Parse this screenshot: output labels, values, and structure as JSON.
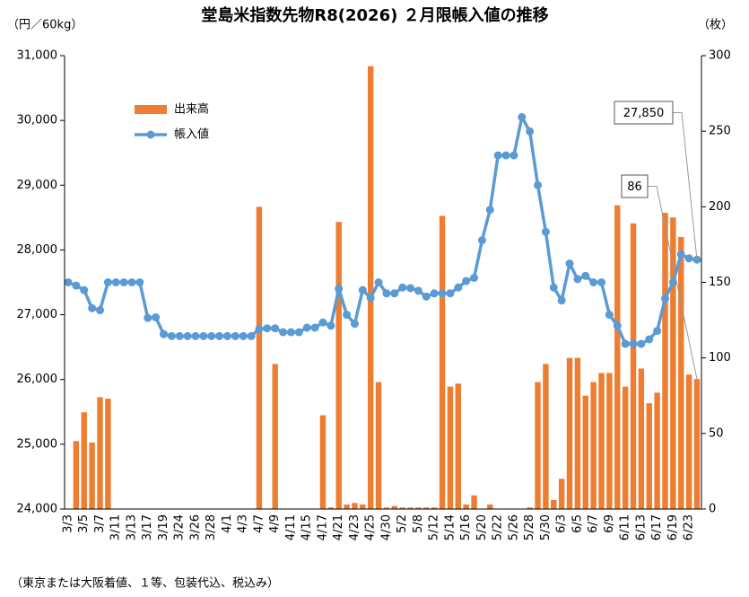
{
  "chart_data": {
    "type": "bar_line",
    "title": "堂島米指数先物R8(2026) ２月限帳入値の推移",
    "y_label": "（円／60kg）",
    "y2_label": "（枚）",
    "footnote": "（東京または大阪着値、１等、包装代込、税込み）",
    "legend": "upper left",
    "categories": [
      "3/3",
      null,
      "3/5",
      null,
      "3/7",
      null,
      "3/11",
      null,
      "3/13",
      null,
      "3/17",
      null,
      "3/19",
      null,
      "3/24",
      null,
      "3/26",
      null,
      "3/28",
      null,
      "4/1",
      null,
      "4/3",
      null,
      "4/7",
      null,
      "4/9",
      null,
      "4/11",
      null,
      "4/15",
      null,
      "4/17",
      null,
      "4/21",
      null,
      "4/23",
      null,
      "4/25",
      null,
      "4/30",
      null,
      "5/2",
      null,
      "5/8",
      null,
      "5/12",
      null,
      "5/14",
      null,
      "5/16",
      null,
      "5/20",
      null,
      "5/22",
      null,
      "5/26",
      null,
      "5/28",
      null,
      "5/30",
      null,
      "6/3",
      null,
      "6/5",
      null,
      "6/7",
      null,
      "6/9",
      null,
      "6/11",
      null,
      "6/13",
      null,
      "6/17",
      null,
      "6/19",
      null,
      "6/23",
      null
    ],
    "series": [
      {
        "name": "出来高",
        "kind": "bar",
        "axis": "y2",
        "color": "#ed7d31",
        "values": [
          0,
          45,
          64,
          44,
          74,
          73,
          0,
          0,
          0,
          0,
          0,
          0,
          0,
          0,
          0,
          0,
          0,
          0,
          0,
          0,
          0,
          0,
          0,
          0,
          200,
          0,
          96,
          0,
          0,
          0,
          0,
          0,
          62,
          1,
          190,
          3,
          4,
          3,
          293,
          84,
          1,
          2,
          1,
          1,
          1,
          1,
          1,
          194,
          81,
          83,
          3,
          9,
          0,
          3,
          0,
          0,
          0,
          0,
          1,
          84,
          96,
          6,
          20,
          100,
          100,
          75,
          84,
          90,
          90,
          201,
          81,
          189,
          93,
          70,
          77,
          196,
          193,
          180,
          89,
          86
        ],
        "value_labels": [
          null,
          null,
          null,
          null,
          null,
          null,
          null,
          null,
          null,
          null,
          null,
          null,
          null,
          null,
          null,
          null,
          null,
          null,
          null,
          null,
          null,
          null,
          null,
          null,
          null,
          null,
          null,
          null,
          null,
          null,
          null,
          null,
          null,
          null,
          null,
          null,
          null,
          null,
          null,
          null,
          null,
          null,
          null,
          null,
          null,
          null,
          null,
          null,
          null,
          null,
          null,
          null,
          null,
          null,
          null,
          null,
          null,
          null,
          null,
          null,
          null,
          null,
          null,
          null,
          null,
          null,
          null,
          null,
          null,
          null,
          null,
          null,
          null,
          null,
          null,
          null,
          null,
          null,
          null,
          "86"
        ]
      },
      {
        "name": "帳入値",
        "kind": "line",
        "color": "#5b9bd5",
        "values": [
          27500,
          27450,
          27380,
          27100,
          27070,
          27500,
          27500,
          27500,
          27500,
          27500,
          26950,
          26960,
          26700,
          26670,
          26670,
          26670,
          26670,
          26670,
          26670,
          26670,
          26670,
          26670,
          26670,
          26670,
          26780,
          26790,
          26790,
          26730,
          26730,
          26730,
          26800,
          26800,
          26880,
          26830,
          27400,
          27000,
          26860,
          27380,
          27260,
          27500,
          27330,
          27330,
          27420,
          27410,
          27370,
          27280,
          27330,
          27330,
          27330,
          27420,
          27520,
          27570,
          28150,
          28620,
          29460,
          29460,
          29460,
          30050,
          29830,
          29000,
          28280,
          27420,
          27220,
          27790,
          27550,
          27600,
          27500,
          27500,
          27000,
          26830,
          26550,
          26550,
          26550,
          26620,
          26750,
          27250,
          27500,
          27930,
          27870,
          27850
        ],
        "value_labels": [
          null,
          null,
          null,
          null,
          null,
          null,
          null,
          null,
          null,
          null,
          null,
          null,
          null,
          null,
          null,
          null,
          null,
          null,
          null,
          null,
          null,
          null,
          null,
          null,
          null,
          null,
          null,
          null,
          null,
          null,
          null,
          null,
          null,
          null,
          null,
          null,
          null,
          null,
          null,
          null,
          null,
          null,
          null,
          null,
          null,
          null,
          null,
          null,
          null,
          null,
          null,
          null,
          null,
          null,
          null,
          null,
          null,
          null,
          null,
          null,
          null,
          null,
          null,
          null,
          null,
          null,
          null,
          null,
          null,
          null,
          null,
          null,
          null,
          null,
          null,
          null,
          null,
          null,
          null,
          "27,850"
        ]
      }
    ],
    "ylim": [
      24000,
      31000
    ],
    "yticks": [
      {
        "value": 24000,
        "label": "24,000"
      },
      {
        "value": 25000,
        "label": "25,000"
      },
      {
        "value": 26000,
        "label": "26,000"
      },
      {
        "value": 27000,
        "label": "27,000"
      },
      {
        "value": 28000,
        "label": "28,000"
      },
      {
        "value": 29000,
        "label": "29,000"
      },
      {
        "value": 30000,
        "label": "30,000"
      },
      {
        "value": 31000,
        "label": "31,000"
      }
    ],
    "y2lim": [
      0,
      300
    ],
    "y2ticks": [
      0,
      50,
      100,
      150,
      200,
      250,
      300
    ]
  }
}
